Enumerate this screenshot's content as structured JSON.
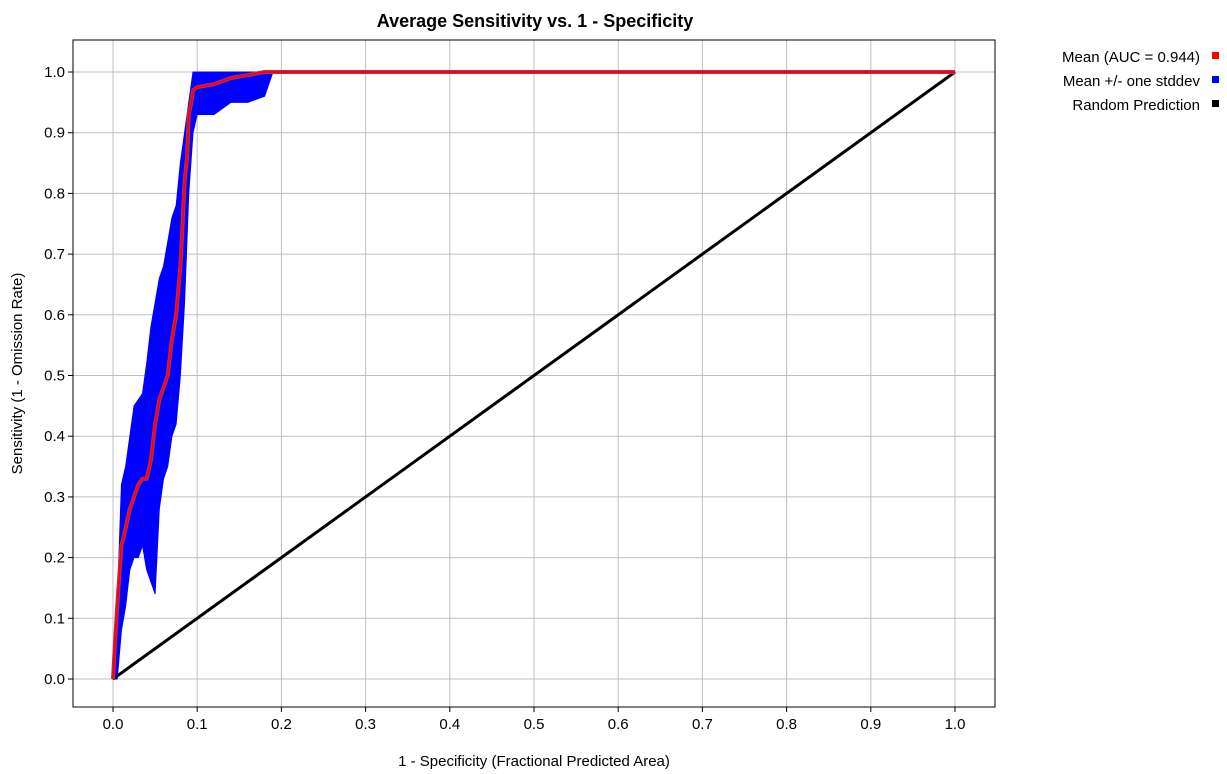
{
  "chart_data": {
    "type": "line",
    "title": "Average Sensitivity vs. 1 - Specificity",
    "xlabel": "1 - Specificity (Fractional Predicted Area)",
    "ylabel": "Sensitivity (1 - Omission Rate)",
    "xlim": [
      -0.05,
      1.05
    ],
    "ylim": [
      -0.05,
      1.05
    ],
    "x_ticks": [
      "0.0",
      "0.1",
      "0.2",
      "0.3",
      "0.4",
      "0.5",
      "0.6",
      "0.7",
      "0.8",
      "0.9",
      "1.0"
    ],
    "y_ticks": [
      "0.0",
      "0.1",
      "0.2",
      "0.3",
      "0.4",
      "0.5",
      "0.6",
      "0.7",
      "0.8",
      "0.9",
      "1.0"
    ],
    "grid": true,
    "legend_position": "right",
    "series": [
      {
        "name": "Mean (AUC = 0.944)",
        "color": "#ff0000",
        "x": [
          0.0,
          0.002,
          0.005,
          0.01,
          0.012,
          0.02,
          0.025,
          0.03,
          0.035,
          0.04,
          0.045,
          0.05,
          0.055,
          0.06,
          0.065,
          0.07,
          0.075,
          0.08,
          0.082,
          0.085,
          0.088,
          0.09,
          0.093,
          0.095,
          0.1,
          0.12,
          0.14,
          0.18,
          0.3,
          0.5,
          0.7,
          0.9,
          1.0
        ],
        "y": [
          0.0,
          0.05,
          0.12,
          0.22,
          0.23,
          0.28,
          0.3,
          0.32,
          0.33,
          0.33,
          0.36,
          0.42,
          0.46,
          0.48,
          0.5,
          0.56,
          0.6,
          0.68,
          0.73,
          0.82,
          0.86,
          0.93,
          0.95,
          0.97,
          0.975,
          0.98,
          0.99,
          1.0,
          1.0,
          1.0,
          1.0,
          1.0,
          1.0
        ]
      },
      {
        "name": "Mean +/- one stddev",
        "color": "#0000ff",
        "x": [
          0.0,
          0.005,
          0.01,
          0.015,
          0.02,
          0.025,
          0.03,
          0.035,
          0.04,
          0.045,
          0.05,
          0.055,
          0.06,
          0.065,
          0.07,
          0.075,
          0.08,
          0.085,
          0.09,
          0.095,
          0.1,
          0.12,
          0.14,
          0.16,
          0.18,
          0.19
        ],
        "upper": [
          0.0,
          0.12,
          0.32,
          0.35,
          0.4,
          0.45,
          0.46,
          0.47,
          0.52,
          0.58,
          0.62,
          0.66,
          0.68,
          0.72,
          0.76,
          0.78,
          0.85,
          0.9,
          0.95,
          1.0,
          1.0,
          1.0,
          1.0,
          1.0,
          1.0,
          1.0
        ],
        "lower": [
          0.0,
          0.0,
          0.08,
          0.12,
          0.18,
          0.2,
          0.2,
          0.22,
          0.18,
          0.16,
          0.14,
          0.28,
          0.33,
          0.35,
          0.4,
          0.42,
          0.5,
          0.62,
          0.8,
          0.9,
          0.93,
          0.93,
          0.95,
          0.95,
          0.96,
          1.0
        ]
      },
      {
        "name": "Random Prediction",
        "color": "#000000",
        "x": [
          0.0,
          1.0
        ],
        "y": [
          0.0,
          1.0
        ]
      }
    ]
  }
}
